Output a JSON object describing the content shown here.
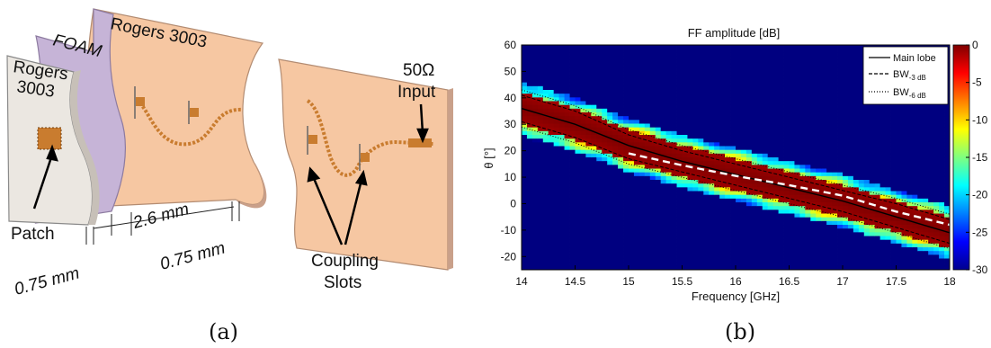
{
  "panel_a": {
    "label": "(a)",
    "layer_rogers_front": [
      "Rogers",
      "3003"
    ],
    "layer_foam": "FOAM",
    "layer_rogers_back": "Rogers 3003",
    "input_label": [
      "50Ω",
      "Input"
    ],
    "patch_label": "Patch",
    "coupling_label": [
      "Coupling",
      "Slots"
    ],
    "dim_1": "0.75 mm",
    "dim_2": "2.6 mm",
    "dim_3": "0.75 mm"
  },
  "panel_b": {
    "label": "(b)",
    "legend": [
      "Main lobe",
      "BW",
      "-3 dB",
      "BW",
      "-6 dB"
    ],
    "colorbar_ticks": [
      "0",
      "-5",
      "-10",
      "-15",
      "-20",
      "-25",
      "-30"
    ]
  },
  "colors": {
    "rogers": "#f6c7a2",
    "rogers_edge": "#c9a08a",
    "foam": "#c6b4d7",
    "front_board": "#ebe7e1",
    "trace": "#c97c2f",
    "main_lobe": "#000000"
  },
  "chart_data": {
    "type": "heatmap",
    "title": "FF amplitude [dB]",
    "xlabel": "Frequency [GHz]",
    "ylabel": "θ [°]",
    "xlim": [
      14,
      18
    ],
    "ylim": [
      -25,
      60
    ],
    "x_ticks": [
      "14",
      "14.5",
      "15",
      "15.5",
      "16",
      "16.5",
      "17",
      "17.5",
      "18"
    ],
    "y_ticks": [
      "60",
      "50",
      "40",
      "30",
      "20",
      "10",
      "0",
      "-10",
      "-20"
    ],
    "colorbar_range": [
      -30,
      0
    ],
    "colormap": "jet",
    "series": [
      {
        "name": "Main lobe",
        "style": "solid",
        "x": [
          14.0,
          14.5,
          15.0,
          15.5,
          16.0,
          16.5,
          17.0,
          17.5,
          18.0
        ],
        "y": [
          36,
          30,
          22,
          16,
          11,
          6,
          1,
          -5,
          -11
        ]
      },
      {
        "name": "BW-3 dB",
        "style": "dashed",
        "x": [
          14.0,
          14.5,
          15.0,
          15.5,
          16.0,
          16.5,
          17.0,
          17.5,
          18.0
        ],
        "y_upper": [
          41,
          35,
          26,
          20,
          15,
          10,
          5,
          0,
          -6
        ],
        "y_lower": [
          31,
          25,
          17,
          12,
          7,
          2,
          -3,
          -9,
          -15
        ]
      },
      {
        "name": "BW-6 dB",
        "style": "dotted",
        "x": [
          14.0,
          14.5,
          15.0,
          15.5,
          16.0,
          16.5,
          17.0,
          17.5,
          18.0
        ],
        "y_upper": [
          43,
          37,
          28,
          22,
          17,
          12,
          7,
          2,
          -4
        ],
        "y_lower": [
          29,
          23,
          15,
          10,
          5,
          0,
          -5,
          -11,
          -17
        ]
      },
      {
        "name": "theory",
        "style": "white-dashed",
        "x": [
          15.0,
          15.5,
          16.0,
          16.5,
          17.0,
          17.5,
          18.0
        ],
        "y": [
          19,
          14.5,
          10.5,
          7,
          3,
          -3,
          -8
        ]
      }
    ]
  }
}
